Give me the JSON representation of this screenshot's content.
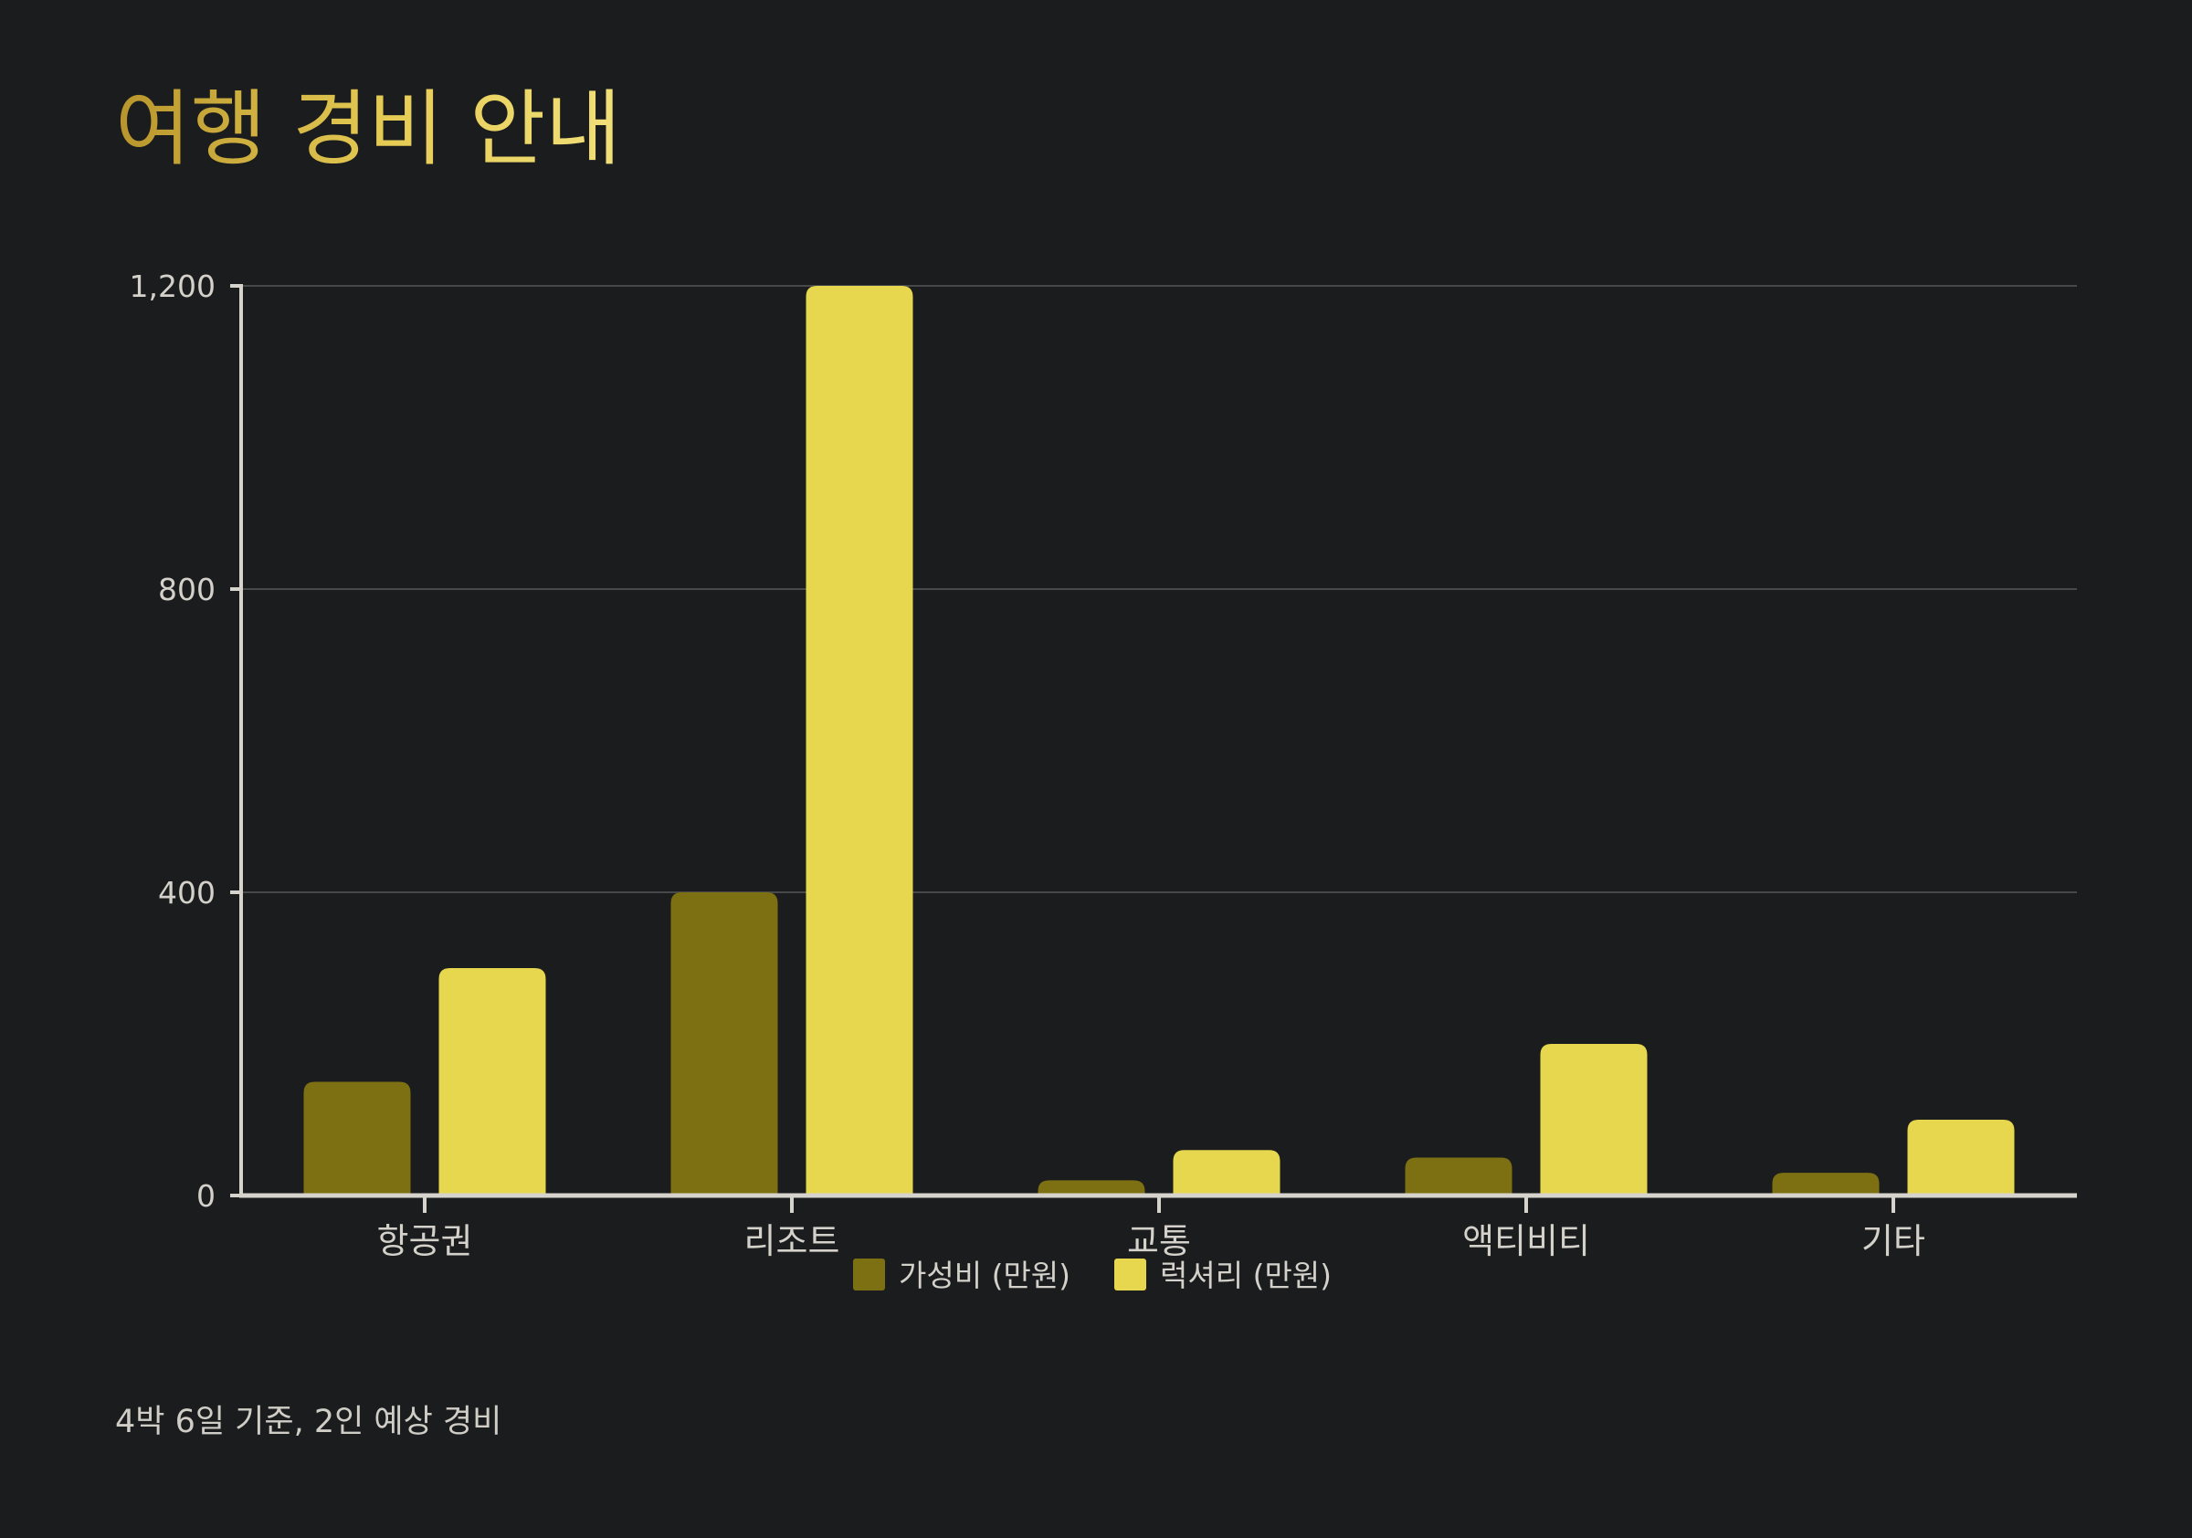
{
  "title": "여행 경비 안내",
  "footnote": "4박 6일 기준, 2인 예상 경비",
  "colors": {
    "background": "#1b1c1e",
    "axis": "#d6d3cc",
    "grid": "#47484a",
    "text": "#d3d1ca",
    "series": [
      "#7d7012",
      "#e6d74f"
    ]
  },
  "chart_data": {
    "type": "bar",
    "categories": [
      "항공권",
      "리조트",
      "교통",
      "액티비티",
      "기타"
    ],
    "series": [
      {
        "name": "가성비 (만원)",
        "values": [
          150,
          400,
          20,
          50,
          30
        ]
      },
      {
        "name": "럭셔리 (만원)",
        "values": [
          300,
          1200,
          60,
          200,
          100
        ]
      }
    ],
    "ylim": [
      0,
      1200
    ],
    "yticks": [
      0,
      400,
      800,
      1200
    ],
    "ytick_labels": [
      "0",
      "400",
      "800",
      "1,200"
    ],
    "grid": true,
    "legend": "bottom-center"
  }
}
